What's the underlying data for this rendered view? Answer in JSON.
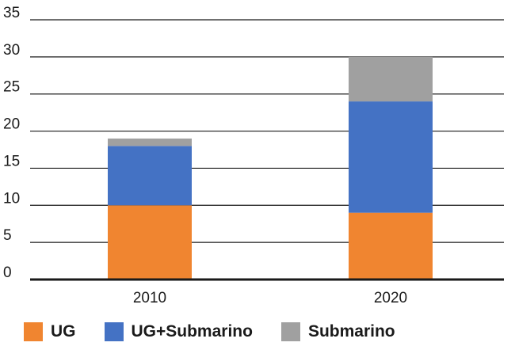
{
  "chart_data": {
    "type": "bar",
    "stacked": true,
    "categories": [
      "2010",
      "2020"
    ],
    "series": [
      {
        "name": "UG",
        "values": [
          10,
          9
        ],
        "color": "#f08530"
      },
      {
        "name": "UG+Submarino",
        "values": [
          8,
          15
        ],
        "color": "#4472c4"
      },
      {
        "name": "Submarino",
        "values": [
          1,
          6
        ],
        "color": "#a0a0a0"
      }
    ],
    "title": "",
    "xlabel": "",
    "ylabel": "",
    "ylim": [
      0,
      35
    ],
    "yticks": [
      0,
      5,
      10,
      15,
      20,
      25,
      30,
      35
    ],
    "grid": true,
    "legend_position": "bottom-left"
  }
}
